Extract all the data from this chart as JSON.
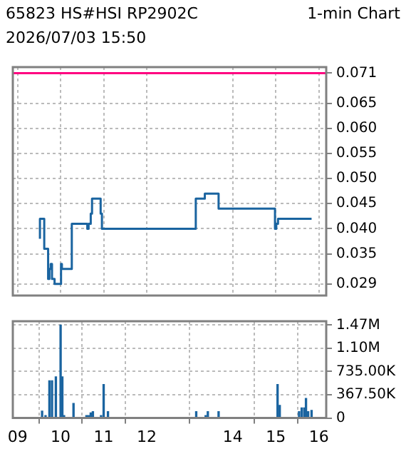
{
  "chart_data": [
    {
      "type": "step",
      "title": "65823 HS#HSI  RP2902C",
      "subtitle": "2026/07/03 15:50",
      "annotations": [
        "1-min Chart"
      ],
      "series": [
        {
          "color": "#1a64a0",
          "x": [
            9.52,
            9.62,
            9.71,
            9.74,
            9.77,
            9.8,
            9.86,
            10.01,
            10.03,
            10.26,
            10.62,
            10.65,
            10.7,
            10.73,
            10.93,
            10.96,
            13.14,
            13.35,
            13.67,
            14.98,
            15.01,
            15.05,
            15.71,
            15.83
          ],
          "values": [
            0.038,
            0.042,
            0.036,
            0.03,
            0.032,
            0.033,
            0.03,
            0.029,
            0.033,
            0.032,
            0.041,
            0.04,
            0.041,
            0.043,
            0.046,
            0.043,
            0.04,
            0.046,
            0.047,
            0.044,
            0.04,
            0.041,
            0.042,
            0.042
          ]
        }
      ],
      "xlim": [
        8.89,
        16.17
      ],
      "xticks": [
        9,
        10,
        11,
        12,
        14,
        15,
        16
      ],
      "ylim": [
        0.0267,
        0.0722
      ],
      "yticks": [
        0.029,
        0.035,
        {
          "value": 0.04,
          "label": "0.040"
        },
        0.045,
        {
          "value": 0.05,
          "label": "0.050"
        },
        0.055,
        {
          "value": 0.06,
          "label": "0.060"
        },
        0.065,
        0.071
      ],
      "ref_lines": [
        {
          "axis": "y",
          "value": 0.071,
          "color": "#ff0080"
        }
      ],
      "grid": true,
      "tick_labels": "y",
      "legend": false
    },
    {
      "type": "bar",
      "x": [
        9.57,
        9.65,
        9.74,
        9.8,
        9.89,
        10.0,
        10.04,
        10.08,
        10.3,
        10.6,
        10.65,
        10.7,
        10.75,
        10.94,
        11.0,
        11.1,
        13.15,
        13.37,
        13.42,
        13.67,
        15.04,
        15.09,
        15.54,
        15.6,
        15.66,
        15.7,
        15.75,
        15.83
      ],
      "series": [
        {
          "color": "#1a64a0",
          "values": [
            110000,
            40000,
            590000,
            590000,
            650000,
            1470000,
            650000,
            40000,
            230000,
            40000,
            40000,
            80000,
            100000,
            40000,
            530000,
            100000,
            100000,
            40000,
            100000,
            100000,
            530000,
            200000,
            100000,
            160000,
            160000,
            310000,
            100000,
            120000
          ]
        }
      ],
      "xlim": [
        8.89,
        16.17
      ],
      "xticks": [
        {
          "value": 9,
          "label": "09"
        },
        10,
        11,
        12,
        14,
        15,
        16
      ],
      "ylim": [
        0,
        1530000
      ],
      "yticks": [
        0,
        {
          "value": 367500,
          "label": "367.50K"
        },
        {
          "value": 735000,
          "label": "735.00K"
        },
        {
          "value": 1100000,
          "label": "1.10M"
        },
        {
          "value": 1470000,
          "label": "1.47M"
        }
      ],
      "grid": true,
      "legend": false
    }
  ]
}
